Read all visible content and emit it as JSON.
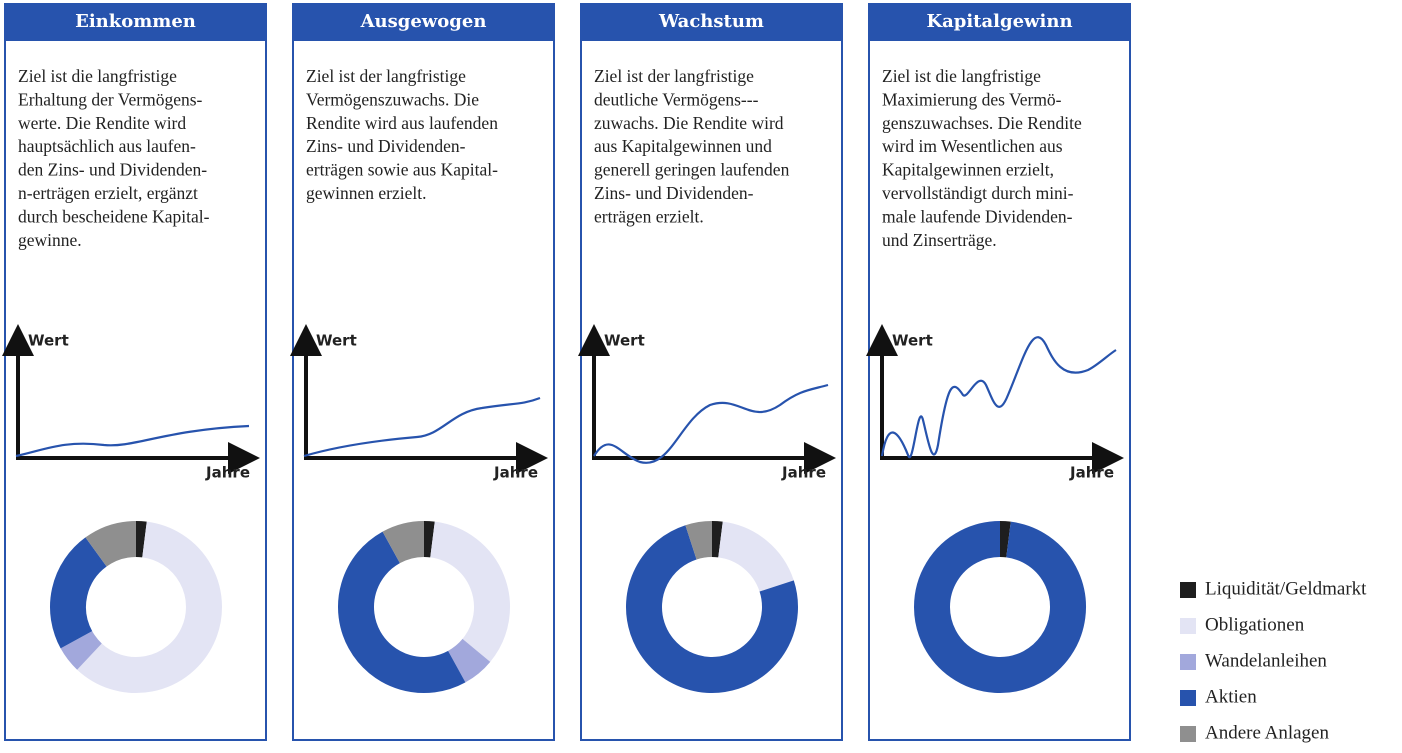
{
  "panels": [
    {
      "title": "Einkommen",
      "text": [
        "Ziel ist die langfristige",
        "Erhaltung der Vermögens-",
        "werte. Die Rendite wird",
        "hauptsächlich aus laufen-",
        "den Zins- und Dividenden-",
        "n-erträgen erzielt, ergänzt",
        "durch bescheidene Kapital-",
        "gewinne."
      ],
      "y_axis": "Wert",
      "x_axis": "Jahre"
    },
    {
      "title": "Ausgewogen",
      "text": [
        "Ziel ist der langfristige",
        "Vermögenszuwachs. Die",
        "Rendite wird aus laufenden",
        "Zins- und Dividenden-",
        "erträgen sowie aus Kapital-",
        "gewinnen erzielt."
      ],
      "y_axis": "Wert",
      "x_axis": "Jahre"
    },
    {
      "title": "Wachstum",
      "text": [
        "Ziel ist der langfristige",
        "deutliche Vermögens---",
        "zuwachs. Die Rendite wird",
        "aus Kapitalgewinnen und",
        "generell geringen laufenden",
        "Zins- und Dividenden-",
        "erträgen erzielt."
      ],
      "y_axis": "Wert",
      "x_axis": "Jahre"
    },
    {
      "title": "Kapitalgewinn",
      "text": [
        "Ziel ist die langfristige",
        "Maximierung des Vermö-",
        "genszuwachses. Die Rendite",
        "wird im Wesentlichen aus",
        "Kapitalgewinnen erzielt,",
        "vervollständigt durch mini-",
        "male laufende Dividenden-",
        "und Zinserträge."
      ],
      "y_axis": "Wert",
      "x_axis": "Jahre"
    }
  ],
  "legend": {
    "labels": [
      "Liquidität/Geldmarkt",
      "Obligationen",
      "Wandelanleihen",
      "Aktien",
      "Andere Anlagen"
    ],
    "colors": [
      "#1e1e1e",
      "#e3e4f4",
      "#a2a8dc",
      "#2753ad",
      "#8f8f8f"
    ]
  },
  "chart_data": [
    {
      "type": "pie",
      "values": [
        2,
        60,
        5,
        23,
        10
      ]
    },
    {
      "type": "pie",
      "values": [
        2,
        34,
        6,
        50,
        8
      ]
    },
    {
      "type": "pie",
      "values": [
        2,
        18,
        0,
        75,
        5
      ]
    },
    {
      "type": "pie",
      "values": [
        2,
        0,
        0,
        98,
        0
      ]
    }
  ]
}
